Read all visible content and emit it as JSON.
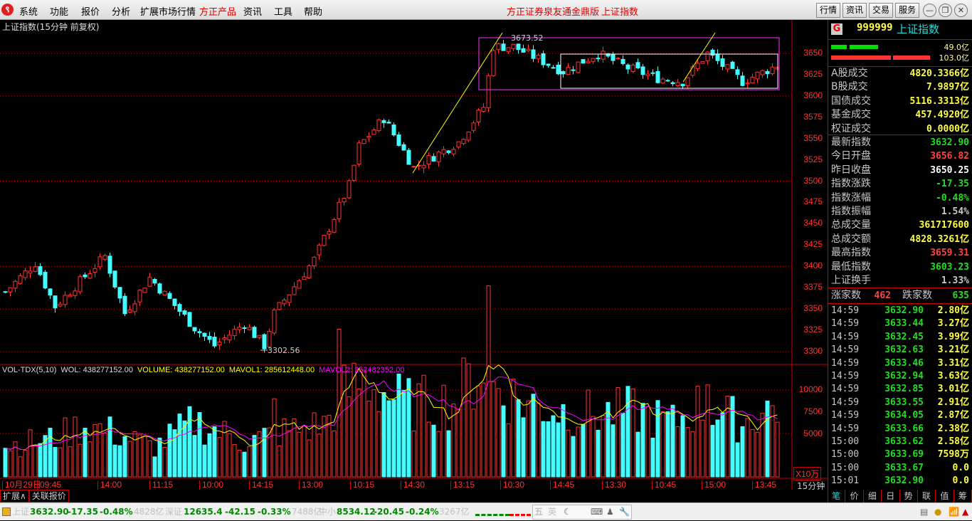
{
  "menu": {
    "items": [
      "系统",
      "功能",
      "报价",
      "分析",
      "扩展市场行情",
      "方正产品",
      "资讯",
      "工具",
      "帮助"
    ],
    "center_title": "方正证券泉友通金鼎版",
    "center_symbol": "上证指数",
    "right_buttons": [
      "行情",
      "资讯",
      "交易",
      "服务"
    ]
  },
  "chart": {
    "title": "上证指数(15分钟 前复权)",
    "price_axis": [
      "3650",
      "3625",
      "3600",
      "3575",
      "3550",
      "3525",
      "3500",
      "3475",
      "3450",
      "3425",
      "3400",
      "3375",
      "3350",
      "3325",
      "3300"
    ],
    "high_label": "3673.52",
    "low_label": "3302.56",
    "vol_header": {
      "name": "VOL-TDX(5,10)",
      "wol": "WOL: 438277152.00",
      "volume": "VOLUME: 438277152.00",
      "mavol1": "MAVOL1: 285612448.00",
      "mavol2": "MAVOL2: 252482352.00"
    },
    "vol_axis": [
      "10000",
      "7500",
      "5000"
    ],
    "vol_unit": "X10万",
    "period": "15分钟",
    "time_axis": [
      "10月29日",
      "09:45",
      "14:00",
      "11:15",
      "10:00",
      "14:15",
      "13:00",
      "10:15",
      "14:30",
      "13:15",
      "10:30",
      "14:45",
      "13:30",
      "10:45",
      "15:00",
      "13:45"
    ],
    "colors": {
      "up": "#ff3333",
      "down": "#44ffff",
      "ma1": "#ffff00",
      "ma2": "#ff00ff"
    }
  },
  "chart_data": {
    "type": "candlestick",
    "bars": 156,
    "ylim": [
      3290,
      3680
    ],
    "price_path": [
      [
        0,
        3370
      ],
      [
        6,
        3404
      ],
      [
        10,
        3353
      ],
      [
        20,
        3412
      ],
      [
        24,
        3345
      ],
      [
        29,
        3387
      ],
      [
        38,
        3328
      ],
      [
        42,
        3307
      ],
      [
        48,
        3333
      ],
      [
        52,
        3307
      ],
      [
        54,
        3345
      ],
      [
        62,
        3408
      ],
      [
        69,
        3495
      ],
      [
        71,
        3541
      ],
      [
        76,
        3574
      ],
      [
        82,
        3516
      ],
      [
        91,
        3546
      ],
      [
        96,
        3587
      ],
      [
        98,
        3658
      ],
      [
        102,
        3658
      ],
      [
        112,
        3629
      ],
      [
        119,
        3650
      ],
      [
        125,
        3633
      ],
      [
        131,
        3621
      ],
      [
        136,
        3617
      ],
      [
        141,
        3650
      ],
      [
        148,
        3617
      ],
      [
        155,
        3636
      ]
    ],
    "volume_path": [
      [
        0,
        1800
      ],
      [
        10,
        2200
      ],
      [
        16,
        3000
      ],
      [
        22,
        2500
      ],
      [
        30,
        1700
      ],
      [
        38,
        3200
      ],
      [
        48,
        2000
      ],
      [
        56,
        2600
      ],
      [
        64,
        3000
      ],
      [
        68,
        4800
      ],
      [
        72,
        5600
      ],
      [
        80,
        4200
      ],
      [
        90,
        4300
      ],
      [
        96,
        6500
      ],
      [
        98,
        5300
      ],
      [
        104,
        4300
      ],
      [
        112,
        3800
      ],
      [
        120,
        3600
      ],
      [
        126,
        3800
      ],
      [
        134,
        3100
      ],
      [
        140,
        4200
      ],
      [
        148,
        3100
      ],
      [
        155,
        4200
      ]
    ],
    "spikes": [
      [
        67,
        8500
      ],
      [
        97,
        11000
      ],
      [
        54,
        4500
      ],
      [
        117,
        5000
      ],
      [
        141,
        5300
      ]
    ]
  },
  "panel": {
    "badge": "G",
    "code": "999999",
    "name": "上证指数",
    "bar_small": "49.0亿",
    "bar_big": "103.0亿",
    "rows": [
      [
        "A股成交",
        "4820.3366亿",
        "#ffff44"
      ],
      [
        "B股成交",
        "7.9897亿",
        "#ffff44"
      ],
      [
        "国债成交",
        "5116.3313亿",
        "#ffff44"
      ],
      [
        "基金成交",
        "457.4920亿",
        "#ffff44"
      ],
      [
        "权证成交",
        "0.0000亿",
        "#ffff44"
      ]
    ],
    "stats": [
      [
        "最新指数",
        "3632.90",
        "#22dd22"
      ],
      [
        "今日开盘",
        "3656.82",
        "#ff4444"
      ],
      [
        "昨日收盘",
        "3650.25",
        "#ffffff"
      ],
      [
        "指数涨跌",
        "-17.35",
        "#22dd22"
      ],
      [
        "指数涨幅",
        "-0.48%",
        "#22dd22"
      ],
      [
        "指数振幅",
        "1.54%",
        "#c8c8c8"
      ],
      [
        "总成交量",
        "361717600",
        "#ffff44"
      ],
      [
        "总成交额",
        "4828.3261亿",
        "#ffff44"
      ],
      [
        "最高指数",
        "3659.31",
        "#ff4444"
      ],
      [
        "最低指数",
        "3603.23",
        "#22dd22"
      ],
      [
        "上证换手",
        "1.33%",
        "#c8c8c8"
      ]
    ],
    "up_label": "涨家数",
    "up_count": "462",
    "down_label": "跌家数",
    "down_count": "635",
    "ticks": [
      [
        "14:59",
        "3632.90",
        "2.80亿"
      ],
      [
        "14:59",
        "3633.44",
        "3.27亿"
      ],
      [
        "14:59",
        "3632.45",
        "3.99亿"
      ],
      [
        "14:59",
        "3632.63",
        "3.21亿"
      ],
      [
        "14:59",
        "3633.46",
        "3.31亿"
      ],
      [
        "14:59",
        "3632.94",
        "3.63亿"
      ],
      [
        "14:59",
        "3632.85",
        "3.01亿"
      ],
      [
        "14:59",
        "3633.55",
        "2.91亿"
      ],
      [
        "14:59",
        "3634.05",
        "2.87亿"
      ],
      [
        "14:59",
        "3633.66",
        "2.38亿"
      ],
      [
        "15:00",
        "3633.62",
        "2.58亿"
      ],
      [
        "15:00",
        "3633.69",
        "7598万"
      ],
      [
        "15:00",
        "3633.67",
        "0.0"
      ],
      [
        "15:01",
        "3632.90",
        "0.0"
      ]
    ],
    "tabs": [
      "笔",
      "价",
      "细",
      "日",
      "势",
      "联",
      "值",
      "筹"
    ]
  },
  "bottom_tabs": [
    "扩展∧",
    "关联报价"
  ],
  "status": {
    "sh": "上证",
    "sh_v": "3632.90",
    "sh_c": "-17.35",
    "sh_p": "-0.48%",
    "sh_a": "4828亿",
    "sz": "深证",
    "sz_v": "12635.4",
    "sz_c": "-42.15",
    "sz_p": "-0.33%",
    "sz_a": "7488亿",
    "zx": "中小",
    "zx_v": "8534.12",
    "zx_c": "-20.45",
    "zx_p": "-0.24%",
    "zx_a": "3267亿",
    "ime": [
      "五",
      "英"
    ]
  }
}
